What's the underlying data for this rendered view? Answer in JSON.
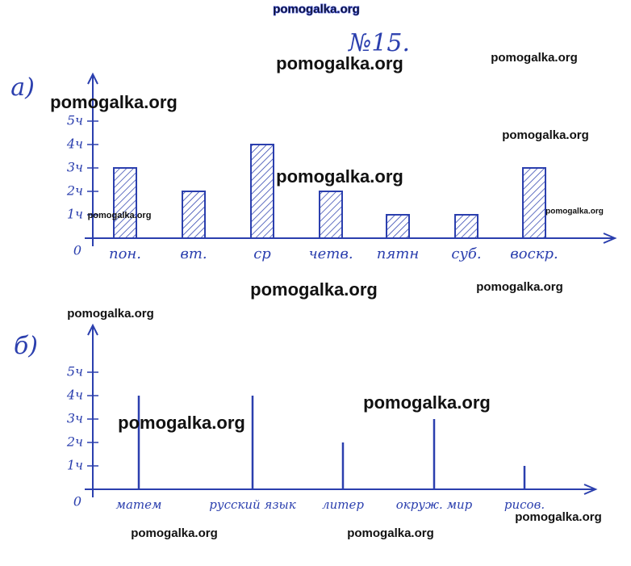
{
  "header": {
    "number": "№15."
  },
  "watermarks": [
    "pomogalka.org",
    "pomogalka.org",
    "pomogalka.org",
    "pomogalka.org",
    "pomogalka.org",
    "pomogalka.org",
    "pomogalka.org",
    "pomogalka.org",
    "pomogalka.org",
    "pomogalka.org",
    "pomogalka.org",
    "pomogalka.org",
    "pomogalka.org",
    "pomogalka.org",
    "pomogalka.org",
    "pomogalka.org"
  ],
  "chart_data": [
    {
      "type": "bar",
      "label": "а)",
      "categories": [
        "пон.",
        "вт.",
        "ср",
        "четв.",
        "пятн",
        "суб.",
        "воскр."
      ],
      "values": [
        3,
        2,
        4,
        2,
        1,
        1,
        3
      ],
      "ylim": [
        0,
        7
      ],
      "yticks": [
        0,
        {
          "value": 1,
          "label": "1ч"
        },
        {
          "value": 2,
          "label": "2ч"
        },
        {
          "value": 3,
          "label": "3ч"
        },
        {
          "value": 4,
          "label": "4ч"
        },
        {
          "value": 5,
          "label": "5ч"
        }
      ],
      "color": "#2b3fae"
    },
    {
      "type": "stem",
      "label": "б)",
      "categories": [
        "матем",
        "русский язык",
        "литер",
        "окруж. мир",
        "рисов."
      ],
      "values": [
        4,
        4,
        2,
        3,
        1
      ],
      "ylim": [
        0,
        7
      ],
      "yticks": [
        0,
        {
          "value": 1,
          "label": "1ч"
        },
        {
          "value": 2,
          "label": "2ч"
        },
        {
          "value": 3,
          "label": "3ч"
        },
        {
          "value": 4,
          "label": "4ч"
        },
        {
          "value": 5,
          "label": "5ч"
        }
      ],
      "color": "#2b3fae"
    }
  ]
}
